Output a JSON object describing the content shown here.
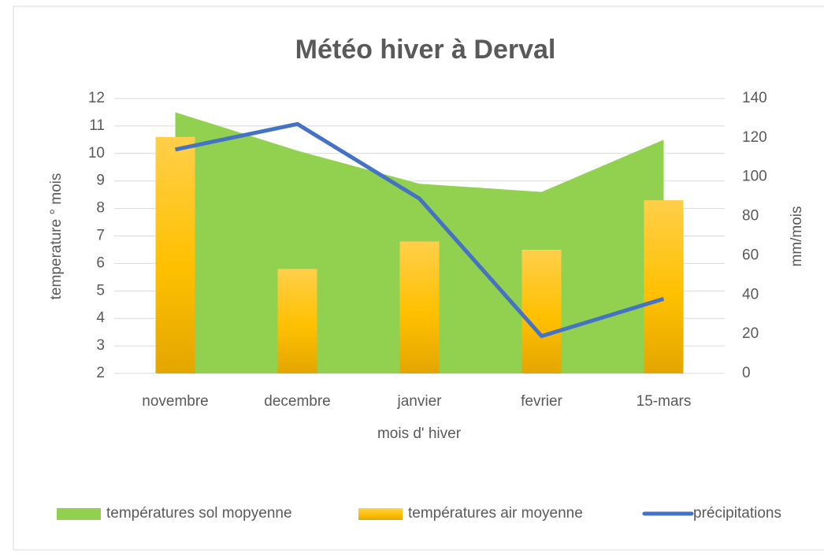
{
  "chart_data": {
    "type": "combo",
    "title": "Météo hiver à Derval",
    "categories": [
      "novembre",
      "decembre",
      "janvier",
      "fevrier",
      "15-mars"
    ],
    "x_label": "mois d' hiver",
    "y_label": "temperature ° mois",
    "y2_label": "mm/mois",
    "ylim": [
      2,
      12
    ],
    "yticks": [
      2,
      3,
      4,
      5,
      6,
      7,
      8,
      9,
      10,
      11,
      12
    ],
    "y2lim": [
      0,
      140
    ],
    "y2ticks": [
      0,
      20,
      40,
      60,
      80,
      100,
      120,
      140
    ],
    "grid": true,
    "legend": "bottom",
    "series": [
      {
        "name": "températures sol mopyenne",
        "type": "area",
        "color": "#92d050",
        "values": [
          11.5,
          10.1,
          8.9,
          8.6,
          10.5
        ]
      },
      {
        "name": "températures air moyenne",
        "type": "bar",
        "color": "#ffc000",
        "values": [
          10.6,
          5.8,
          6.8,
          6.5,
          8.3
        ]
      },
      {
        "name": "précipitations",
        "type": "line",
        "axis": "y2",
        "color": "#4472c4",
        "values": [
          114,
          127,
          89,
          19,
          38
        ]
      }
    ]
  }
}
